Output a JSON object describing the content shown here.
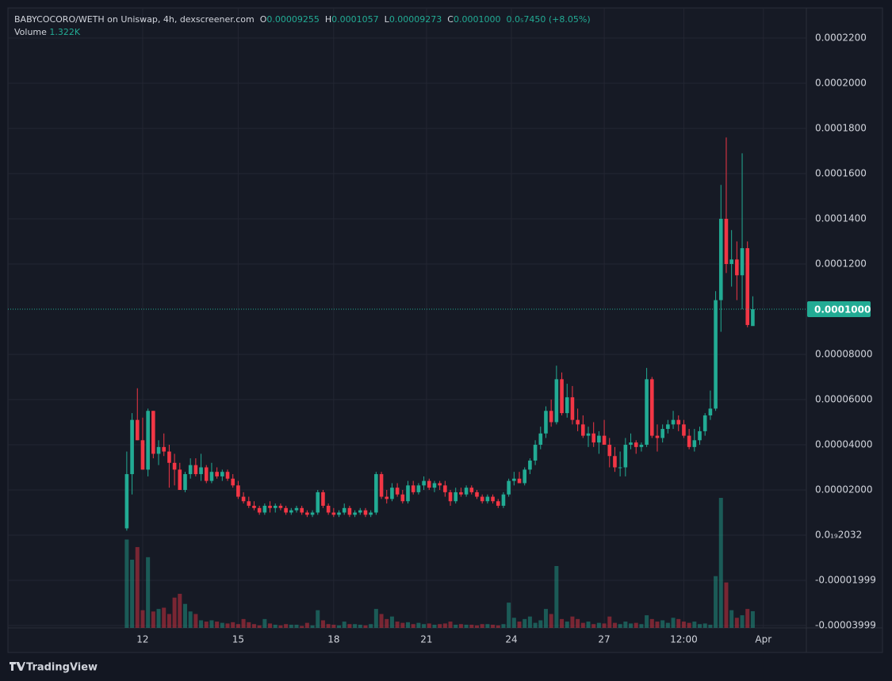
{
  "chart_data": {
    "type": "candlestick",
    "title": "BABYCOCORO/WETH on Uniswap, 4h, dexscreener.com",
    "ohlc_legend": [
      {
        "key": "O",
        "label": "0.00009255"
      },
      {
        "key": "H",
        "label": "0.0001057"
      },
      {
        "key": "L",
        "label": "0.00009273"
      },
      {
        "key": "C",
        "label": "0.0001000"
      }
    ],
    "change_label": "0.0₅7450 (+8.05%)",
    "volume_legend": {
      "key": "Volume",
      "label": "1.322K"
    },
    "brand": "TradingView",
    "up_color": "#22ab94",
    "down_color": "#f23645",
    "open": [
      3e-06,
      2.7e-05,
      5.1e-05,
      4.2e-05,
      2.9e-05,
      5.5e-05,
      3.6e-05,
      3.9e-05,
      3.7e-05,
      3.2e-05,
      2.9e-05,
      2e-05,
      2.7e-05,
      3.1e-05,
      2.7e-05,
      3e-05,
      2.4e-05,
      2.8e-05,
      2.6e-05,
      2.8e-05,
      2.5e-05,
      2.2e-05,
      1.7e-05,
      1.5e-05,
      1.3e-05,
      1.2e-05,
      1e-05,
      1.3e-05,
      1.2e-05,
      1.3e-05,
      1.2e-05,
      1e-05,
      1.1e-05,
      1.2e-05,
      1e-05,
      9e-06,
      1e-05,
      1.9e-05,
      1.3e-05,
      1e-05,
      9e-06,
      1e-05,
      1.2e-05,
      9e-06,
      1e-05,
      1.1e-05,
      9e-06,
      1e-05,
      2.7e-05,
      1.7e-05,
      1.6e-05,
      2.1e-05,
      1.8e-05,
      1.5e-05,
      2.2e-05,
      1.9e-05,
      2.2e-05,
      2.4e-05,
      2.1e-05,
      2.3e-05,
      2.2e-05,
      1.9e-05,
      1.5e-05,
      1.9e-05,
      1.8e-05,
      2.1e-05,
      1.9e-05,
      1.7e-05,
      1.5e-05,
      1.7e-05,
      1.5e-05,
      1.3e-05,
      1.8e-05,
      2.4e-05,
      2.5e-05,
      2.3e-05,
      2.9e-05,
      3.3e-05,
      4e-05,
      4.5e-05,
      5.5e-05,
      5e-05,
      6.9e-05,
      5.4e-05,
      6.1e-05,
      5.1e-05,
      4.9e-05,
      4.4e-05,
      4.5e-05,
      4.1e-05,
      4.4e-05,
      4e-05,
      3.5e-05,
      3e-05,
      3e-05,
      4e-05,
      4.1e-05,
      3.9e-05,
      4e-05,
      6.9e-05,
      4.4e-05,
      4.3e-05,
      4.7e-05,
      4.9e-05,
      5.1e-05,
      4.9e-05,
      4.4e-05,
      3.9e-05,
      4.2e-05,
      4.6e-05,
      5.3e-05,
      5.6e-05,
      0.000104,
      0.00014,
      0.00012,
      0.000122,
      0.000115,
      0.000127,
      9.255e-05
    ],
    "high": [
      3.7e-05,
      5.4e-05,
      6.5e-05,
      5.2e-05,
      5.6e-05,
      5.5e-05,
      4.2e-05,
      4.5e-05,
      4e-05,
      3.6e-05,
      3.2e-05,
      2.8e-05,
      3.4e-05,
      3.4e-05,
      3.6e-05,
      3.1e-05,
      3.2e-05,
      3e-05,
      2.9e-05,
      2.9e-05,
      2.7e-05,
      2.4e-05,
      1.9e-05,
      1.7e-05,
      1.5e-05,
      1.3e-05,
      1.4e-05,
      1.5e-05,
      1.4e-05,
      1.4e-05,
      1.3e-05,
      1.2e-05,
      1.3e-05,
      1.3e-05,
      1.1e-05,
      1.1e-05,
      2e-05,
      2e-05,
      1.4e-05,
      1.2e-05,
      1.1e-05,
      1.4e-05,
      1.3e-05,
      1.1e-05,
      1.2e-05,
      1.2e-05,
      1.1e-05,
      2.8e-05,
      2.8e-05,
      2e-05,
      2.3e-05,
      2.3e-05,
      2e-05,
      2.4e-05,
      2.4e-05,
      2.3e-05,
      2.6e-05,
      2.5e-05,
      2.4e-05,
      2.4e-05,
      2.4e-05,
      2e-05,
      2.1e-05,
      2.1e-05,
      2.2e-05,
      2.2e-05,
      2e-05,
      1.8e-05,
      1.8e-05,
      1.8e-05,
      1.6e-05,
      1.9e-05,
      2.5e-05,
      2.8e-05,
      2.8e-05,
      3e-05,
      3.4e-05,
      4.2e-05,
      4.8e-05,
      5.7e-05,
      6e-05,
      7.5e-05,
      7.2e-05,
      6.7e-05,
      6.6e-05,
      5.6e-05,
      5.3e-05,
      4.8e-05,
      5e-05,
      4.6e-05,
      5.1e-05,
      4.3e-05,
      3.9e-05,
      3.7e-05,
      4.3e-05,
      4.5e-05,
      4.2e-05,
      4.1e-05,
      7.4e-05,
      7e-05,
      4.9e-05,
      4.9e-05,
      5.1e-05,
      5.5e-05,
      5.3e-05,
      5.1e-05,
      4.7e-05,
      4.7e-05,
      4.8e-05,
      5.4e-05,
      6.4e-05,
      0.000108,
      0.000155,
      0.000176,
      0.000135,
      0.00013,
      0.000169,
      0.00013,
      0.0001057
    ],
    "low": [
      2e-06,
      1.8e-05,
      4.2e-05,
      2.9e-05,
      2.6e-05,
      3.4e-05,
      3.1e-05,
      3.5e-05,
      2.1e-05,
      2.2e-05,
      2e-05,
      1.9e-05,
      2.5e-05,
      2.6e-05,
      2.4e-05,
      2.3e-05,
      2.3e-05,
      2.5e-05,
      2.4e-05,
      2.4e-05,
      2.1e-05,
      1.6e-05,
      1.4e-05,
      1.2e-05,
      1.1e-05,
      9e-06,
      9e-06,
      1e-05,
      1e-05,
      1.1e-05,
      9e-06,
      9e-06,
      1e-05,
      9e-06,
      8e-06,
      8e-06,
      9e-06,
      1.2e-05,
      9e-06,
      8e-06,
      8e-06,
      9e-06,
      8e-06,
      8e-06,
      9e-06,
      8e-06,
      8e-06,
      9e-06,
      1.6e-05,
      1.4e-05,
      1.5e-05,
      1.7e-05,
      1.4e-05,
      1.4e-05,
      1.8e-05,
      1.8e-05,
      2e-05,
      2e-05,
      1.9e-05,
      2e-05,
      1.7e-05,
      1.3e-05,
      1.4e-05,
      1.7e-05,
      1.7e-05,
      1.8e-05,
      1.6e-05,
      1.4e-05,
      1.4e-05,
      1.4e-05,
      1.2e-05,
      1.2e-05,
      1.7e-05,
      2.2e-05,
      2.3e-05,
      2.2e-05,
      2.7e-05,
      3.1e-05,
      3.8e-05,
      4.3e-05,
      4.8e-05,
      4.9e-05,
      5.3e-05,
      5.2e-05,
      4.9e-05,
      4.6e-05,
      4.3e-05,
      3.9e-05,
      3.9e-05,
      3.6e-05,
      4e-05,
      3e-05,
      2.8e-05,
      2.6e-05,
      2.6e-05,
      3.8e-05,
      3.6e-05,
      3.7e-05,
      3.9e-05,
      4.3e-05,
      3.7e-05,
      4.1e-05,
      4.5e-05,
      4.7e-05,
      4.6e-05,
      4.3e-05,
      3.8e-05,
      3.7e-05,
      4e-05,
      4.4e-05,
      5.1e-05,
      5.5e-05,
      9e-05,
      0.000116,
      0.00011,
      0.000104,
      0.0001,
      9.2e-05,
      9.273e-05
    ],
    "close": [
      2.7e-05,
      5.1e-05,
      4.2e-05,
      2.9e-05,
      5.5e-05,
      3.6e-05,
      3.9e-05,
      3.7e-05,
      3.2e-05,
      2.9e-05,
      2e-05,
      2.7e-05,
      3.1e-05,
      2.7e-05,
      3e-05,
      2.4e-05,
      2.8e-05,
      2.6e-05,
      2.8e-05,
      2.5e-05,
      2.2e-05,
      1.7e-05,
      1.5e-05,
      1.3e-05,
      1.2e-05,
      1e-05,
      1.3e-05,
      1.2e-05,
      1.3e-05,
      1.2e-05,
      1e-05,
      1.1e-05,
      1.2e-05,
      1e-05,
      9e-06,
      1e-05,
      1.9e-05,
      1.3e-05,
      1e-05,
      9e-06,
      1e-05,
      1.2e-05,
      9e-06,
      1e-05,
      1.1e-05,
      9e-06,
      1e-05,
      2.7e-05,
      1.7e-05,
      1.6e-05,
      2.1e-05,
      1.8e-05,
      1.5e-05,
      2.2e-05,
      1.9e-05,
      2.2e-05,
      2.4e-05,
      2.1e-05,
      2.3e-05,
      2.2e-05,
      1.9e-05,
      1.5e-05,
      1.9e-05,
      1.8e-05,
      2.1e-05,
      1.9e-05,
      1.7e-05,
      1.5e-05,
      1.7e-05,
      1.5e-05,
      1.3e-05,
      1.8e-05,
      2.4e-05,
      2.5e-05,
      2.3e-05,
      2.9e-05,
      3.3e-05,
      4e-05,
      4.5e-05,
      5.5e-05,
      5e-05,
      6.9e-05,
      5.4e-05,
      6.1e-05,
      5.1e-05,
      4.9e-05,
      4.4e-05,
      4.5e-05,
      4.1e-05,
      4.4e-05,
      4e-05,
      3.5e-05,
      3e-05,
      3e-05,
      4e-05,
      4.1e-05,
      3.9e-05,
      4e-05,
      6.9e-05,
      4.4e-05,
      4.3e-05,
      4.7e-05,
      4.9e-05,
      5.1e-05,
      4.9e-05,
      4.4e-05,
      3.9e-05,
      4.2e-05,
      4.6e-05,
      5.3e-05,
      5.6e-05,
      0.000104,
      0.00014,
      0.00012,
      0.000122,
      0.000115,
      0.000127,
      9.3e-05,
      0.0001
    ],
    "volume": [
      7000,
      5400,
      6400,
      1400,
      5600,
      1300,
      1500,
      1600,
      1100,
      2400,
      2700,
      1900,
      1300,
      1100,
      600,
      500,
      600,
      500,
      400,
      350,
      450,
      300,
      700,
      450,
      300,
      200,
      700,
      350,
      250,
      200,
      300,
      250,
      250,
      150,
      400,
      200,
      1400,
      600,
      300,
      250,
      200,
      500,
      300,
      300,
      250,
      200,
      300,
      1500,
      1100,
      700,
      900,
      500,
      400,
      450,
      300,
      400,
      300,
      350,
      250,
      300,
      350,
      500,
      250,
      300,
      250,
      250,
      200,
      300,
      300,
      250,
      200,
      300,
      2000,
      800,
      500,
      700,
      900,
      400,
      600,
      1500,
      1100,
      4900,
      700,
      500,
      900,
      700,
      400,
      500,
      300,
      400,
      350,
      900,
      400,
      300,
      500,
      350,
      400,
      300,
      1000,
      700,
      500,
      600,
      400,
      800,
      700,
      500,
      400,
      500,
      300,
      350,
      250,
      4100,
      10300,
      3600,
      1400,
      800,
      1000,
      1500,
      1322
    ],
    "xlim": [
      -22.4,
      128.1
    ],
    "xticks": [
      {
        "value": 3,
        "label": "12"
      },
      {
        "value": 21,
        "label": "15"
      },
      {
        "value": 39,
        "label": "18"
      },
      {
        "value": 56.5,
        "label": "21"
      },
      {
        "value": 72.5,
        "label": "24"
      },
      {
        "value": 90,
        "label": "27"
      },
      {
        "value": 105,
        "label": "12:00"
      },
      {
        "value": 120,
        "label": "Apr"
      }
    ],
    "ylim": [
      -4.105e-05,
      0.00023333
    ],
    "yticks": [
      {
        "value": 0.00022,
        "label": "0.0002200"
      },
      {
        "value": 0.0002,
        "label": "0.0002000"
      },
      {
        "value": 0.00018,
        "label": "0.0001800"
      },
      {
        "value": 0.00016,
        "label": "0.0001600"
      },
      {
        "value": 0.00014,
        "label": "0.0001400"
      },
      {
        "value": 0.00012,
        "label": "0.0001200"
      },
      {
        "value": 8e-05,
        "label": "0.00008000"
      },
      {
        "value": 6e-05,
        "label": "0.00006000"
      },
      {
        "value": 4e-05,
        "label": "0.00004000"
      },
      {
        "value": 2e-05,
        "label": "0.00002000"
      },
      {
        "value": 2.032e-20,
        "label": "0.0₁₉2032"
      },
      {
        "value": -1.999e-05,
        "label": "-0.00001999"
      },
      {
        "value": -3.999e-05,
        "label": "-0.00003999"
      }
    ],
    "grid": true
  }
}
